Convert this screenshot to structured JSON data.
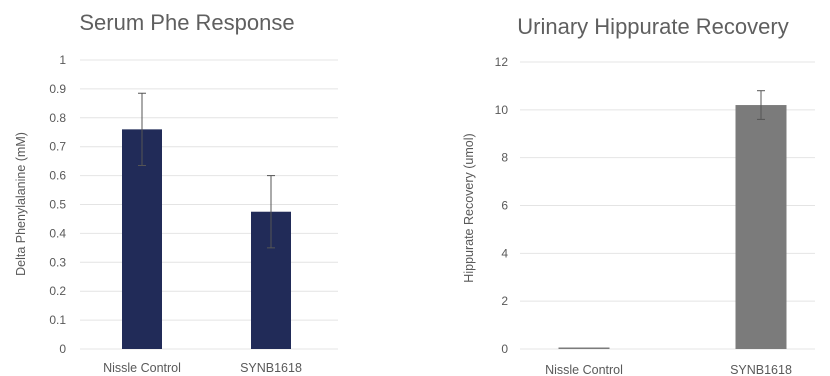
{
  "chart_data": [
    {
      "type": "bar",
      "title": "Serum Phe Response",
      "xlabel": "",
      "ylabel": "Delta Phenylalanine (mM)",
      "categories": [
        "Nissle Control",
        "SYNB1618"
      ],
      "values": [
        0.76,
        0.475
      ],
      "error": [
        0.125,
        0.125
      ],
      "ylim": [
        0,
        1
      ],
      "yticks": [
        0,
        0.1,
        0.2,
        0.3,
        0.4,
        0.5,
        0.6,
        0.7,
        0.8,
        0.9,
        1
      ],
      "ytick_labels": [
        "0",
        "0.1",
        "0.2",
        "0.3",
        "0.4",
        "0.5",
        "0.6",
        "0.7",
        "0.8",
        "0.9",
        "1"
      ],
      "grid": true,
      "bar_color": "#212b58"
    },
    {
      "type": "bar",
      "title": "Urinary Hippurate Recovery",
      "xlabel": "",
      "ylabel": "Hippurate Recovery (umol)",
      "categories": [
        "Nissle Control",
        "SYNB1618"
      ],
      "values": [
        0.05,
        10.2
      ],
      "error": [
        0,
        0.6
      ],
      "ylim": [
        0,
        12
      ],
      "yticks": [
        0,
        2,
        4,
        6,
        8,
        10,
        12
      ],
      "ytick_labels": [
        "0",
        "2",
        "4",
        "6",
        "8",
        "10",
        "12"
      ],
      "grid": true,
      "bar_color": "#7b7b7b"
    }
  ]
}
